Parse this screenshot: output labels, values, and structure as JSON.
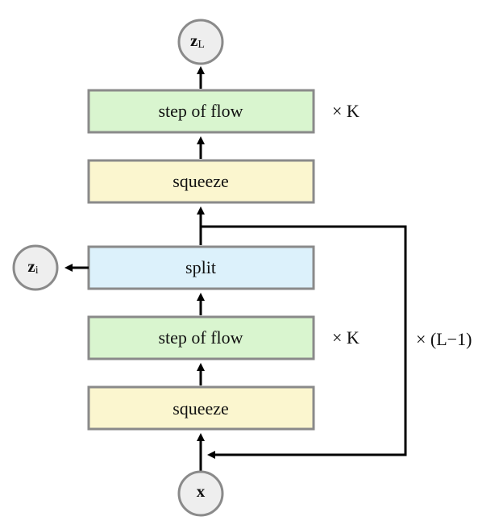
{
  "boxes": {
    "top_step_of_flow": {
      "label": "step of flow",
      "color": "#d9f5cf"
    },
    "top_squeeze": {
      "label": "squeeze",
      "color": "#fbf6cf"
    },
    "split": {
      "label": "split",
      "color": "#dcf1fb"
    },
    "bottom_step_of_flow": {
      "label": "step of flow",
      "color": "#d9f5cf"
    },
    "bottom_squeeze": {
      "label": "squeeze",
      "color": "#fbf6cf"
    }
  },
  "nodes": {
    "z_L": {
      "base": "z",
      "subscript": "L"
    },
    "z_i": {
      "base": "z",
      "subscript": "i"
    },
    "x": {
      "base": "x",
      "subscript": ""
    }
  },
  "labels": {
    "top_repeat": "× K",
    "bottom_repeat": "× K",
    "loop_repeat": "× (L−1)"
  },
  "colors": {
    "box_border": "#8a8a8a",
    "node_fill": "#eeeeee",
    "node_border": "#8a8a8a",
    "arrow": "#000000"
  }
}
